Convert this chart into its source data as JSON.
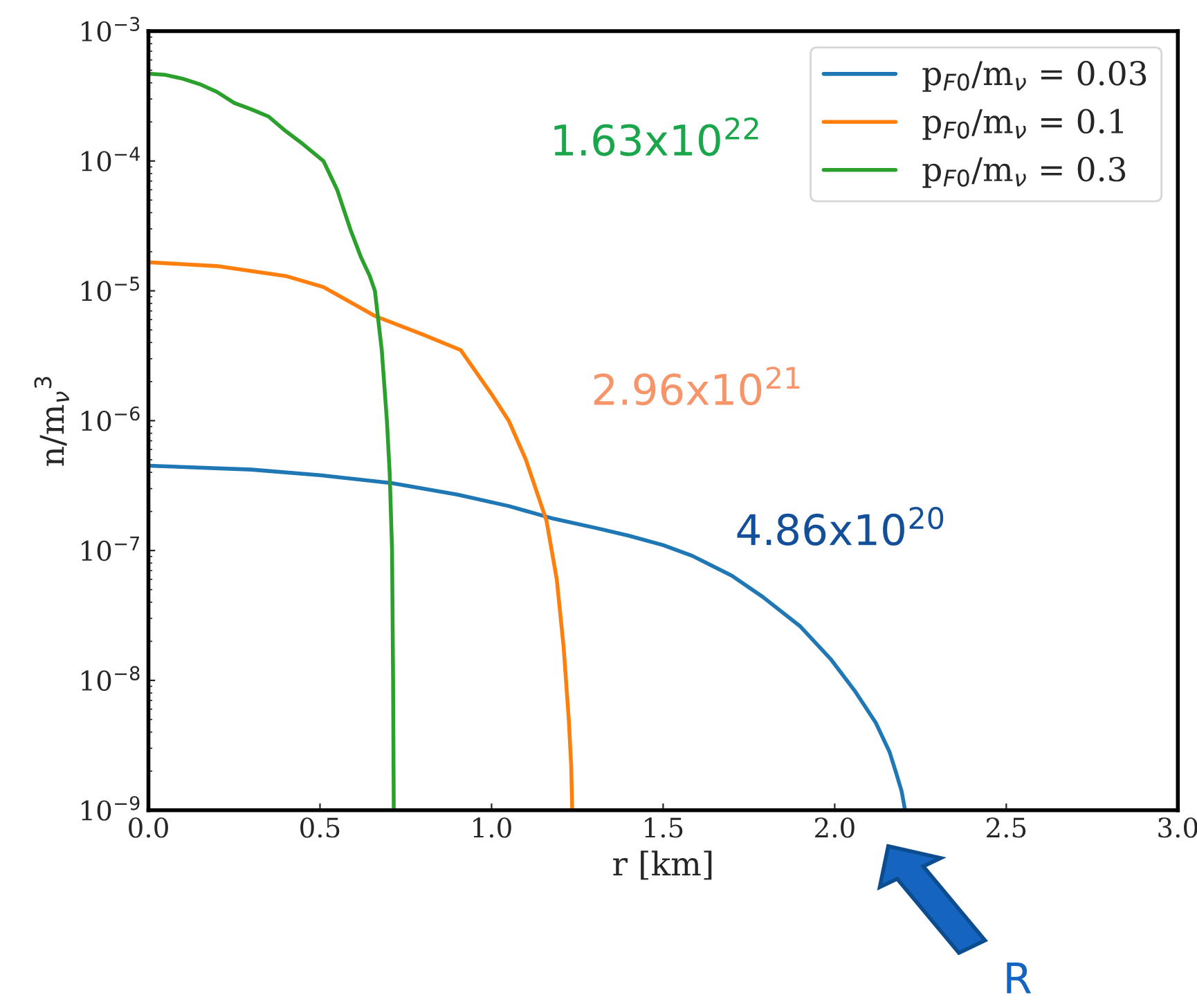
{
  "chart_data": {
    "type": "line",
    "xlabel": "r [km]",
    "ylabel": "n/m$_{ν}$$^{3}$",
    "log": "y",
    "xlim": [
      0,
      3.0
    ],
    "ylim": [
      1e-09,
      0.001
    ],
    "xticks": [
      {
        "value": 0,
        "label": "0.0"
      },
      0.5,
      {
        "value": 1,
        "label": "1.0"
      },
      1.5,
      {
        "value": 2,
        "label": "2.0"
      },
      2.5,
      {
        "value": 3,
        "label": "3.0"
      }
    ],
    "yticks": [
      {
        "value": 1e-09,
        "label": "10$^{−9}$"
      },
      {
        "value": 1e-08,
        "label": "10$^{−8}$"
      },
      {
        "value": 1e-07,
        "label": "10$^{−7}$"
      },
      {
        "value": 1e-06,
        "label": "10$^{−6}$"
      },
      {
        "value": 1e-05,
        "label": "10$^{−5}$"
      },
      {
        "value": 0.0001,
        "label": "10$^{−4}$"
      },
      {
        "value": 0.001,
        "label": "10$^{−3}$"
      }
    ],
    "legend": "top right",
    "grid": false,
    "line_style": "solid",
    "series": [
      {
        "name": "p$_{F0}$/m$_{ν}$ = 0.03",
        "color": "#1f77b4",
        "x": [
          0,
          0.3,
          0.5,
          0.71,
          0.9,
          1.05,
          1.18,
          1.3,
          1.4,
          1.5,
          1.585,
          1.7,
          1.79,
          1.9,
          1.99,
          2.06,
          2.12,
          2.16,
          2.18,
          2.195,
          2.205
        ],
        "values": [
          4.5e-07,
          4.2e-07,
          3.8e-07,
          3.3e-07,
          2.7e-07,
          2.2e-07,
          1.76e-07,
          1.5e-07,
          1.3e-07,
          1.1e-07,
          9.1e-08,
          6.4e-08,
          4.4e-08,
          2.6e-08,
          1.44e-08,
          8.2e-09,
          4.7e-09,
          2.8e-09,
          1.9e-09,
          1.4e-09,
          1e-09
        ]
      },
      {
        "name": "p$_{F0}$/m$_{ν}$ = 0.1",
        "color": "#ff7f0e",
        "x": [
          0,
          0.2,
          0.4,
          0.51,
          0.66,
          0.8,
          0.91,
          1.0,
          1.05,
          1.1,
          1.16,
          1.19,
          1.21,
          1.225,
          1.232,
          1.235
        ],
        "values": [
          1.66e-05,
          1.55e-05,
          1.3e-05,
          1.07e-05,
          6.4e-06,
          4.6e-06,
          3.5e-06,
          1.6e-06,
          1e-06,
          5e-07,
          1.7e-07,
          6e-08,
          1.8e-08,
          5e-09,
          2.2e-09,
          1e-09
        ]
      },
      {
        "name": "p$_{F0}$/m$_{ν}$ = 0.3",
        "color": "#2ca02c",
        "x": [
          0,
          0.05,
          0.1,
          0.15,
          0.2,
          0.25,
          0.3,
          0.35,
          0.4,
          0.45,
          0.51,
          0.55,
          0.59,
          0.62,
          0.645,
          0.66,
          0.68,
          0.695,
          0.703,
          0.71,
          0.713,
          0.715
        ],
        "values": [
          0.00047,
          0.00046,
          0.00043,
          0.00039,
          0.00034,
          0.00028,
          0.00025,
          0.00022,
          0.00017,
          0.000135,
          0.0001,
          6e-05,
          2.9e-05,
          1.8e-05,
          1.3e-05,
          1e-05,
          3.5e-06,
          1e-06,
          4e-07,
          1e-07,
          1e-08,
          1e-09
        ]
      }
    ],
    "annotations": [
      "1.63x10$^{22}$",
      "2.96x10$^{21}$",
      "4.86x10$^{20}$",
      "R"
    ]
  }
}
